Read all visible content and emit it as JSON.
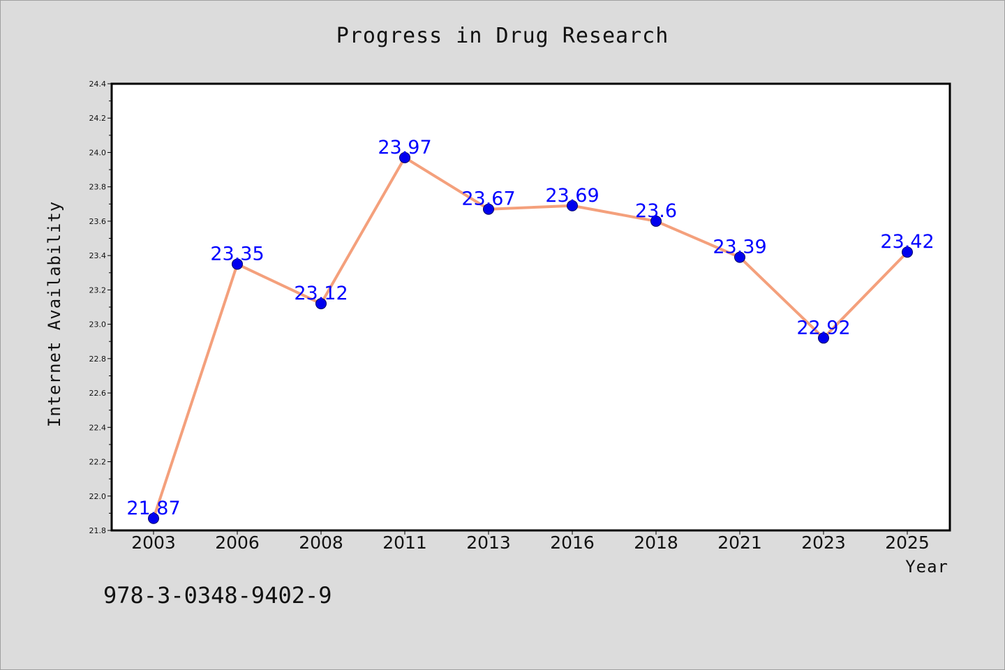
{
  "title": "Progress in Drug Research",
  "footer_text": "978-3-0348-9402-9",
  "chart_data": {
    "type": "line",
    "title": "Progress in Drug Research",
    "xlabel": "Year",
    "ylabel": "Internet Availability",
    "categories": [
      "2003",
      "2006",
      "2008",
      "2011",
      "2013",
      "2016",
      "2018",
      "2021",
      "2023",
      "2025"
    ],
    "series": [
      {
        "values": [
          21.87,
          23.35,
          23.12,
          23.97,
          23.67,
          23.69,
          23.6,
          23.39,
          22.92,
          23.42
        ],
        "labels": [
          "21.87",
          "23.35",
          "23.12",
          "23.97",
          "23.67",
          "23.69",
          "23.6",
          "23.39",
          "22.92",
          "23.42"
        ]
      }
    ],
    "ylim": [
      21.8,
      24.4
    ],
    "yticks": [
      "21.8",
      "22.0",
      "22.2",
      "22.4",
      "22.6",
      "22.8",
      "23.0",
      "23.2",
      "23.4",
      "23.6",
      "23.8",
      "24.0",
      "24.2",
      "24.4"
    ],
    "grid": false,
    "legend": "none",
    "colors": {
      "line": "#f4a07c",
      "marker": "#0000ee",
      "data_label": "#0000ff",
      "plot_background": "#ffffff",
      "page_background": "#dcdcdc"
    }
  }
}
